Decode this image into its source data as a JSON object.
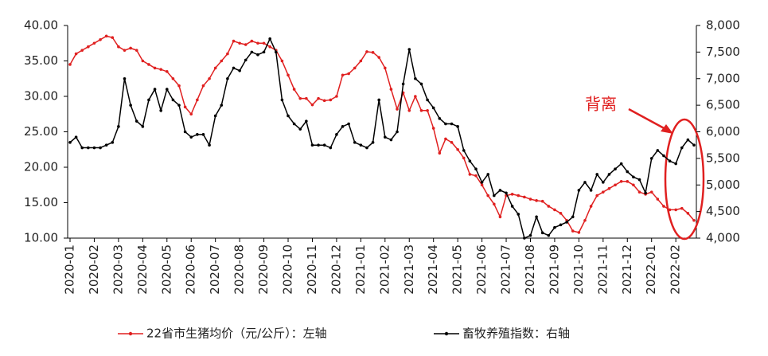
{
  "chart_data": {
    "type": "line",
    "categories": [
      "2020-01",
      null,
      null,
      null,
      "2020-02",
      null,
      null,
      null,
      "2020-03",
      null,
      null,
      null,
      "2020-04",
      null,
      null,
      null,
      "2020-05",
      null,
      null,
      null,
      "2020-06",
      null,
      null,
      null,
      "2020-07",
      null,
      null,
      null,
      "2020-08",
      null,
      null,
      null,
      "2020-09",
      null,
      null,
      null,
      "2020-10",
      null,
      null,
      null,
      "2020-11",
      null,
      null,
      null,
      "2020-12",
      null,
      null,
      null,
      "2021-01",
      null,
      null,
      null,
      "2021-02",
      null,
      null,
      null,
      "2021-03",
      null,
      null,
      null,
      "2021-04",
      null,
      null,
      null,
      "2021-05",
      null,
      null,
      null,
      "2021-06",
      null,
      null,
      null,
      "2021-07",
      null,
      null,
      null,
      "2021-08",
      null,
      null,
      null,
      "2021-09",
      null,
      null,
      null,
      "2021-10",
      null,
      null,
      null,
      "2021-11",
      null,
      null,
      null,
      "2021-12",
      null,
      null,
      null,
      "2022-01",
      null,
      null,
      null,
      "2022-02",
      null,
      null,
      null
    ],
    "series": [
      {
        "name": "22省市生猪均价（元/公斤）：左轴",
        "color": "#e02020",
        "axis": "y",
        "values": [
          34.5,
          36,
          36.5,
          37,
          37.5,
          38,
          38.5,
          38.3,
          37,
          36.5,
          36.8,
          36.5,
          35,
          34.5,
          34,
          33.8,
          33.5,
          32.5,
          31.5,
          28.5,
          27.5,
          29.5,
          31.5,
          32.5,
          34,
          35,
          36,
          37.8,
          37.5,
          37.3,
          37.8,
          37.5,
          37.5,
          37,
          36.5,
          35,
          33,
          31,
          29.7,
          29.7,
          28.8,
          29.7,
          29.4,
          29.5,
          30,
          33,
          33.2,
          34,
          35,
          36.3,
          36.2,
          35.5,
          34,
          31,
          28.2,
          30.5,
          28,
          30,
          28,
          28,
          25.5,
          22,
          24,
          23.5,
          22.5,
          21.3,
          19,
          18.8,
          17.5,
          16,
          14.8,
          13,
          16,
          16.2,
          16,
          15.8,
          15.5,
          15.3,
          15.2,
          14.5,
          14,
          13.5,
          12.5,
          11,
          10.8,
          12.5,
          14.5,
          16,
          16.5,
          17,
          17.5,
          18,
          18,
          17.5,
          16.5,
          16.2,
          16.5,
          15.5,
          14.5,
          14,
          14,
          14.2,
          13.5,
          12.5
        ]
      },
      {
        "name": "畜牧养殖指数：右轴",
        "color": "#000000",
        "axis": "y2",
        "values": [
          5800,
          5900,
          5700,
          5700,
          5700,
          5700,
          5750,
          5800,
          6100,
          7000,
          6500,
          6200,
          6100,
          6600,
          6800,
          6400,
          6800,
          6600,
          6500,
          6000,
          5900,
          5950,
          5950,
          5750,
          6300,
          6500,
          7000,
          7200,
          7150,
          7350,
          7500,
          7450,
          7500,
          7750,
          7500,
          6600,
          6300,
          6150,
          6050,
          6200,
          5750,
          5750,
          5750,
          5700,
          5950,
          6100,
          6150,
          5800,
          5750,
          5700,
          5800,
          6600,
          5900,
          5850,
          6000,
          6900,
          7550,
          7000,
          6900,
          6600,
          6450,
          6250,
          6150,
          6150,
          6100,
          5650,
          5450,
          5300,
          5050,
          5200,
          4800,
          4900,
          4850,
          4600,
          4450,
          4000,
          4050,
          4400,
          4100,
          4050,
          4200,
          4250,
          4300,
          4400,
          4900,
          5050,
          4900,
          5200,
          5050,
          5200,
          5300,
          5400,
          5250,
          5150,
          5100,
          4850,
          5500,
          5650,
          5550,
          5450,
          5400,
          5700,
          5850,
          5750
        ]
      }
    ],
    "ylim": [
      10,
      40
    ],
    "yticks": [
      {
        "value": 10,
        "label": "10.00"
      },
      {
        "value": 15,
        "label": "15.00"
      },
      {
        "value": 20,
        "label": "20.00"
      },
      {
        "value": 25,
        "label": "25.00"
      },
      {
        "value": 30,
        "label": "30.00"
      },
      {
        "value": 35,
        "label": "35.00"
      },
      {
        "value": 40,
        "label": "40.00"
      }
    ],
    "y2lim": [
      4000,
      8000
    ],
    "y2ticks": [
      {
        "value": 4000,
        "label": "4,000"
      },
      {
        "value": 4500,
        "label": "4,500"
      },
      {
        "value": 5000,
        "label": "5,000"
      },
      {
        "value": 5500,
        "label": "5,500"
      },
      {
        "value": 6000,
        "label": "6,000"
      },
      {
        "value": 6500,
        "label": "6,500"
      },
      {
        "value": 7000,
        "label": "7,000"
      },
      {
        "value": 7500,
        "label": "7,500"
      },
      {
        "value": 8000,
        "label": "8,000"
      }
    ],
    "annotation": "背离",
    "grid": false,
    "legend": "bottom"
  }
}
